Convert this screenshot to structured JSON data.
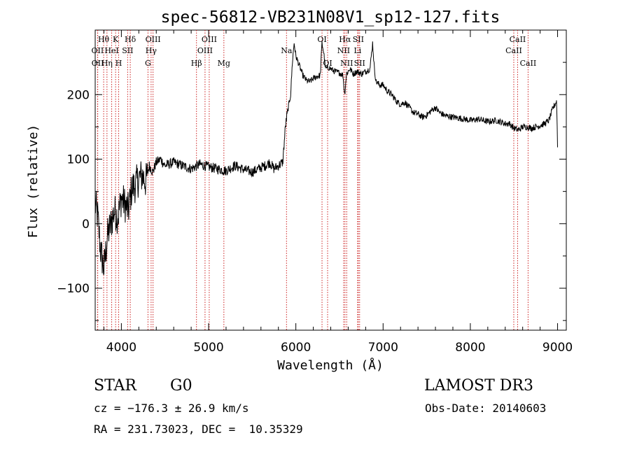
{
  "chart_data": {
    "type": "line",
    "title": "spec-56812-VB231N08V1_sp12-127.fits",
    "xlabel": "Wavelength (Å)",
    "ylabel": "Flux (relative)",
    "xlim": [
      3700,
      9100
    ],
    "ylim": [
      -165,
      300
    ],
    "x_ticks": [
      {
        "value": 4000,
        "label": "4000"
      },
      {
        "value": 5000,
        "label": "5000"
      },
      {
        "value": 6000,
        "label": "6000"
      },
      {
        "value": 7000,
        "label": "7000"
      },
      {
        "value": 8000,
        "label": "8000"
      },
      {
        "value": 9000,
        "label": "9000"
      }
    ],
    "y_ticks": [
      {
        "value": -100,
        "label": "−100"
      },
      {
        "value": 0,
        "label": "0"
      },
      {
        "value": 100,
        "label": "100"
      },
      {
        "value": 200,
        "label": "200"
      }
    ],
    "series": [
      {
        "name": "flux",
        "x": [
          3700,
          3730,
          3760,
          3800,
          3840,
          3880,
          3920,
          3960,
          4000,
          4040,
          4080,
          4120,
          4160,
          4200,
          4240,
          4280,
          4320,
          4360,
          4400,
          4450,
          4500,
          4600,
          4700,
          4800,
          4900,
          5000,
          5100,
          5200,
          5300,
          5400,
          5500,
          5600,
          5650,
          5700,
          5750,
          5800,
          5850,
          5880,
          5900,
          5920,
          5940,
          5960,
          5980,
          6000,
          6040,
          6080,
          6120,
          6160,
          6200,
          6240,
          6280,
          6300,
          6320,
          6340,
          6380,
          6420,
          6460,
          6500,
          6540,
          6560,
          6580,
          6620,
          6660,
          6700,
          6750,
          6800,
          6850,
          6880,
          6900,
          6920,
          6960,
          7000,
          7050,
          7100,
          7150,
          7200,
          7250,
          7300,
          7350,
          7400,
          7450,
          7500,
          7550,
          7600,
          7650,
          7700,
          7800,
          7900,
          8000,
          8100,
          8200,
          8300,
          8400,
          8450,
          8500,
          8550,
          8600,
          8650,
          8700,
          8750,
          8800,
          8850,
          8900,
          8950,
          8990,
          9000
        ],
        "y": [
          30,
          10,
          -40,
          -70,
          -20,
          0,
          20,
          10,
          40,
          30,
          20,
          55,
          60,
          70,
          75,
          65,
          90,
          80,
          95,
          100,
          90,
          95,
          90,
          85,
          92,
          88,
          85,
          82,
          90,
          84,
          80,
          87,
          90,
          95,
          85,
          90,
          95,
          150,
          170,
          185,
          200,
          250,
          280,
          260,
          245,
          230,
          222,
          220,
          225,
          228,
          230,
          280,
          265,
          240,
          242,
          238,
          235,
          234,
          230,
          200,
          232,
          240,
          232,
          236,
          232,
          236,
          240,
          280,
          240,
          220,
          215,
          215,
          205,
          200,
          190,
          185,
          188,
          180,
          172,
          170,
          165,
          168,
          175,
          180,
          172,
          168,
          165,
          163,
          160,
          162,
          158,
          160,
          155,
          155,
          148,
          145,
          150,
          150,
          148,
          150,
          152,
          155,
          160,
          180,
          190,
          120
        ]
      }
    ],
    "spectral_lines": [
      {
        "label": "Hθ",
        "x": 3797,
        "row": 1
      },
      {
        "label": "OII",
        "x": 3727,
        "row": 2
      },
      {
        "label": "OII",
        "x": 3729,
        "row": 3
      },
      {
        "label": "K",
        "x": 3934,
        "row": 1
      },
      {
        "label": "HeI",
        "x": 3889,
        "row": 2
      },
      {
        "label": "Hη",
        "x": 3835,
        "row": 3
      },
      {
        "label": "Hδ",
        "x": 4102,
        "row": 1
      },
      {
        "label": "SII",
        "x": 4072,
        "row": 2
      },
      {
        "label": "H",
        "x": 3969,
        "row": 3
      },
      {
        "label": "OIII",
        "x": 4363,
        "row": 1
      },
      {
        "label": "Hγ",
        "x": 4341,
        "row": 2
      },
      {
        "label": "G",
        "x": 4305,
        "row": 3
      },
      {
        "label": "OIII",
        "x": 5007,
        "row": 1
      },
      {
        "label": "OIII",
        "x": 4959,
        "row": 2
      },
      {
        "label": "Hβ",
        "x": 4861,
        "row": 3
      },
      {
        "label": "Mg",
        "x": 5175,
        "row": 3
      },
      {
        "label": "Na",
        "x": 5893,
        "row": 2
      },
      {
        "label": "OI",
        "x": 6300,
        "row": 1
      },
      {
        "label": "OI",
        "x": 6364,
        "row": 3
      },
      {
        "label": "Hα",
        "x": 6563,
        "row": 1
      },
      {
        "label": "SII",
        "x": 6716,
        "row": 1
      },
      {
        "label": "NII",
        "x": 6548,
        "row": 2
      },
      {
        "label": "Li",
        "x": 6708,
        "row": 2
      },
      {
        "label": "NII",
        "x": 6583,
        "row": 3
      },
      {
        "label": "SII",
        "x": 6731,
        "row": 3
      },
      {
        "label": "CaII",
        "x": 8542,
        "row": 1
      },
      {
        "label": "CaII",
        "x": 8498,
        "row": 2
      },
      {
        "label": "CaII",
        "x": 8662,
        "row": 3
      }
    ]
  },
  "info": {
    "object_class": "STAR",
    "subclass": "G0",
    "survey": "LAMOST DR3",
    "redshift": "cz = −176.3 ± 26.9 km/s",
    "obs_date": "Obs-Date: 20140603",
    "coords": "RA = 231.73023, DEC =  10.35329"
  }
}
